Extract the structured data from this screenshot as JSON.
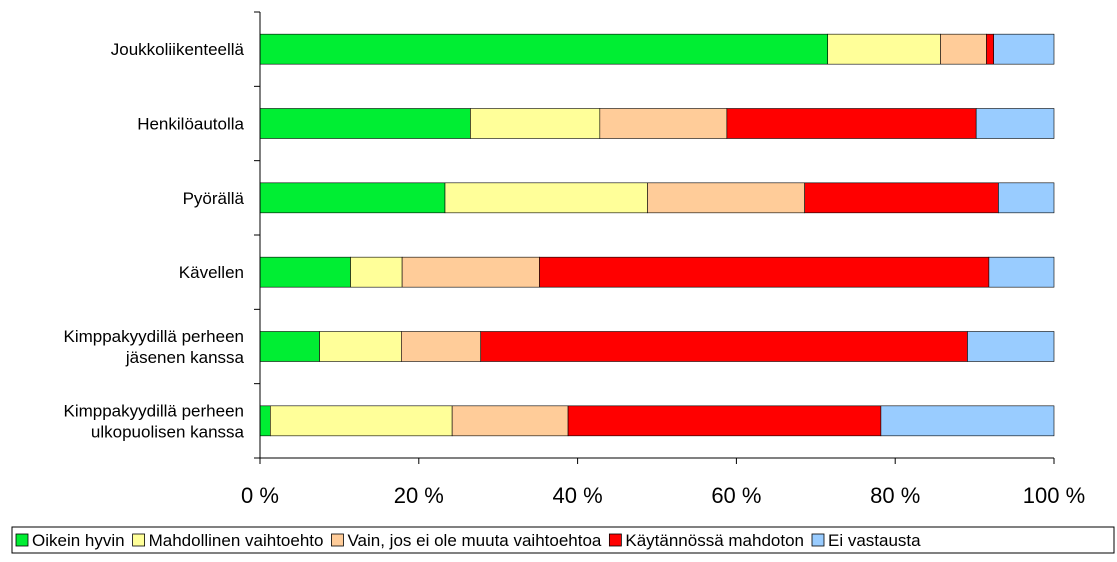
{
  "chart_data": {
    "type": "bar",
    "orientation": "horizontal",
    "stacked": "percent",
    "categories": [
      [
        "Joukkoliikenteellä"
      ],
      [
        "Henkilöautolla"
      ],
      [
        "Pyörällä"
      ],
      [
        "Kävellen"
      ],
      [
        "Kimppakyydillä perheen",
        "jäsenen kanssa"
      ],
      [
        "Kimppakyydillä perheen",
        "ulkopuolisen kanssa"
      ]
    ],
    "series": [
      {
        "name": "Oikein hyvin",
        "color": "#00ee33",
        "values": [
          71.5,
          26.5,
          23.3,
          11.4,
          7.5,
          1.3
        ]
      },
      {
        "name": "Mahdollinen vaihtoehto",
        "color": "#ffff99",
        "values": [
          14.2,
          16.3,
          25.5,
          6.5,
          10.3,
          22.9
        ]
      },
      {
        "name": "Vain, jos ei ole muuta vaihtoehtoa",
        "color": "#ffcc99",
        "values": [
          5.8,
          16.0,
          19.8,
          17.3,
          10.0,
          14.6
        ]
      },
      {
        "name": "Käytännössä mahdoton",
        "color": "#ff0000",
        "values": [
          0.9,
          31.4,
          24.4,
          56.6,
          61.3,
          39.4
        ]
      },
      {
        "name": "Ei vastausta",
        "color": "#99ccff",
        "values": [
          7.6,
          9.8,
          7.0,
          8.2,
          10.9,
          21.8
        ]
      }
    ],
    "xlim": [
      0,
      100
    ],
    "xticks": [
      0,
      20,
      40,
      60,
      80,
      100
    ],
    "xtick_labels": [
      "0 %",
      "20 %",
      "40 %",
      "60 %",
      "80 %",
      "100 %"
    ],
    "xlabel": "",
    "ylabel": "",
    "title": "",
    "grid": false,
    "legend_position": "bottom"
  }
}
